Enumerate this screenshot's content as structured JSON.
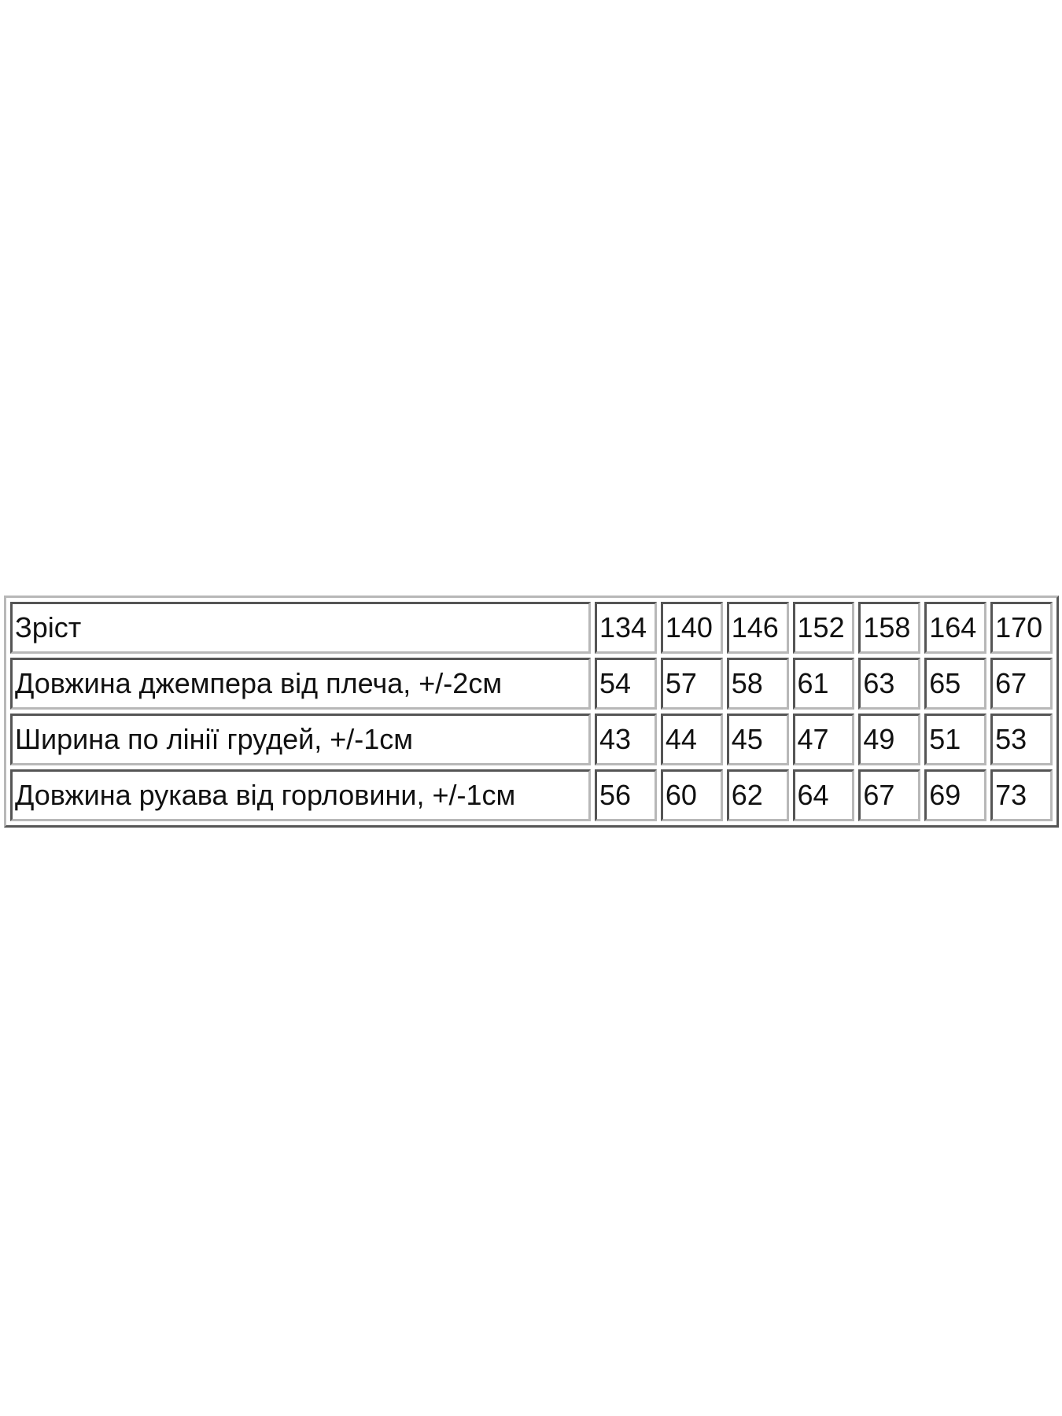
{
  "size_table": {
    "rows": [
      {
        "label": "Зріст",
        "values": [
          "134",
          "140",
          "146",
          "152",
          "158",
          "164",
          "170"
        ]
      },
      {
        "label": "Довжина джемпера від плеча, +/-2см",
        "values": [
          "54",
          "57",
          "58",
          "61",
          "63",
          "65",
          "67"
        ]
      },
      {
        "label": "Ширина по лінії грудей, +/-1см",
        "values": [
          "43",
          "44",
          "45",
          "47",
          "49",
          "51",
          "53"
        ]
      },
      {
        "label": "Довжина рукава від горловини, +/-1см",
        "values": [
          "56",
          "60",
          "62",
          "64",
          "67",
          "69",
          "73"
        ]
      }
    ]
  }
}
